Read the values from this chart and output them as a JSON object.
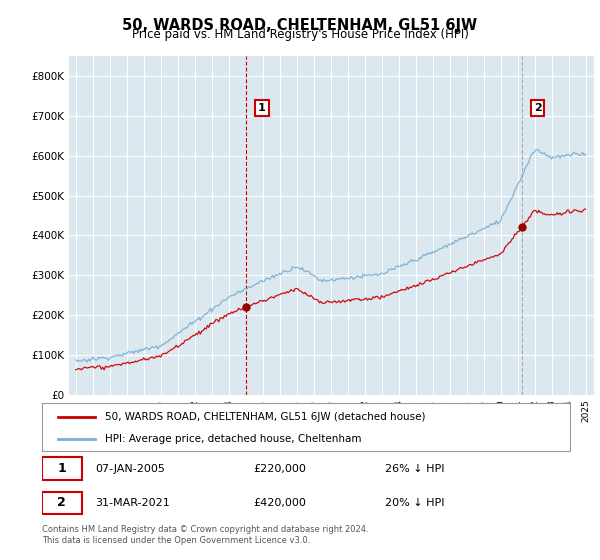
{
  "title": "50, WARDS ROAD, CHELTENHAM, GL51 6JW",
  "subtitle": "Price paid vs. HM Land Registry's House Price Index (HPI)",
  "ylim": [
    0,
    850000
  ],
  "yticks": [
    0,
    100000,
    200000,
    300000,
    400000,
    500000,
    600000,
    700000,
    800000
  ],
  "legend_property_label": "50, WARDS ROAD, CHELTENHAM, GL51 6JW (detached house)",
  "legend_hpi_label": "HPI: Average price, detached house, Cheltenham",
  "sale1_year": 2005.03,
  "sale1_price": 220000,
  "sale1_label": "1",
  "sale1_date": "07-JAN-2005",
  "sale1_hpi_pct": "26% ↓ HPI",
  "sale2_year": 2021.25,
  "sale2_price": 420000,
  "sale2_label": "2",
  "sale2_date": "31-MAR-2021",
  "sale2_hpi_pct": "20% ↓ HPI",
  "vline1_color": "#cc0000",
  "vline2_color": "#aaaaaa",
  "property_line_color": "#cc0000",
  "hpi_line_color": "#7ab0d4",
  "grid_color": "#c8d8e8",
  "plot_bg_color": "#dce8f0",
  "background_color": "#ffffff",
  "footer_text": "Contains HM Land Registry data © Crown copyright and database right 2024.\nThis data is licensed under the Open Government Licence v3.0."
}
